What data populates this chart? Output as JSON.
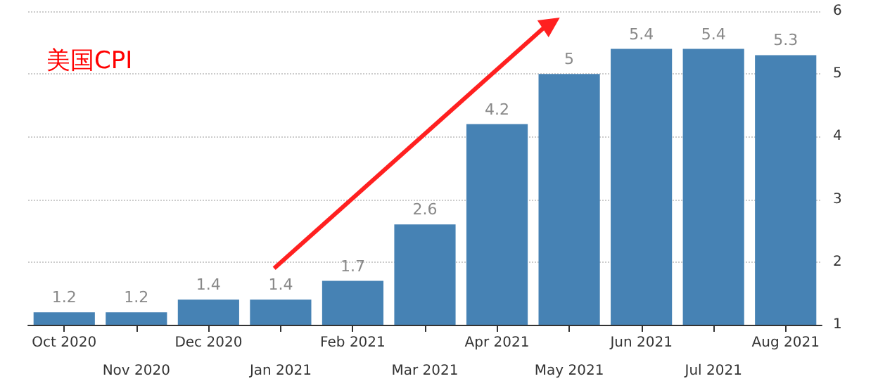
{
  "chart_data": {
    "type": "bar",
    "title": "美国CPI",
    "categories": [
      "Oct 2020",
      "Nov 2020",
      "Dec 2020",
      "Jan 2021",
      "Feb 2021",
      "Mar 2021",
      "Apr 2021",
      "May 2021",
      "Jun 2021",
      "Jul 2021",
      "Aug 2021"
    ],
    "values": [
      1.2,
      1.2,
      1.4,
      1.4,
      1.7,
      2.6,
      4.2,
      5,
      5.4,
      5.4,
      5.3
    ],
    "color": "#4682b4",
    "ylim": [
      1,
      6
    ],
    "yticks": [
      1,
      2,
      3,
      4,
      5,
      6
    ],
    "grid": "y",
    "data_labels": true
  }
}
